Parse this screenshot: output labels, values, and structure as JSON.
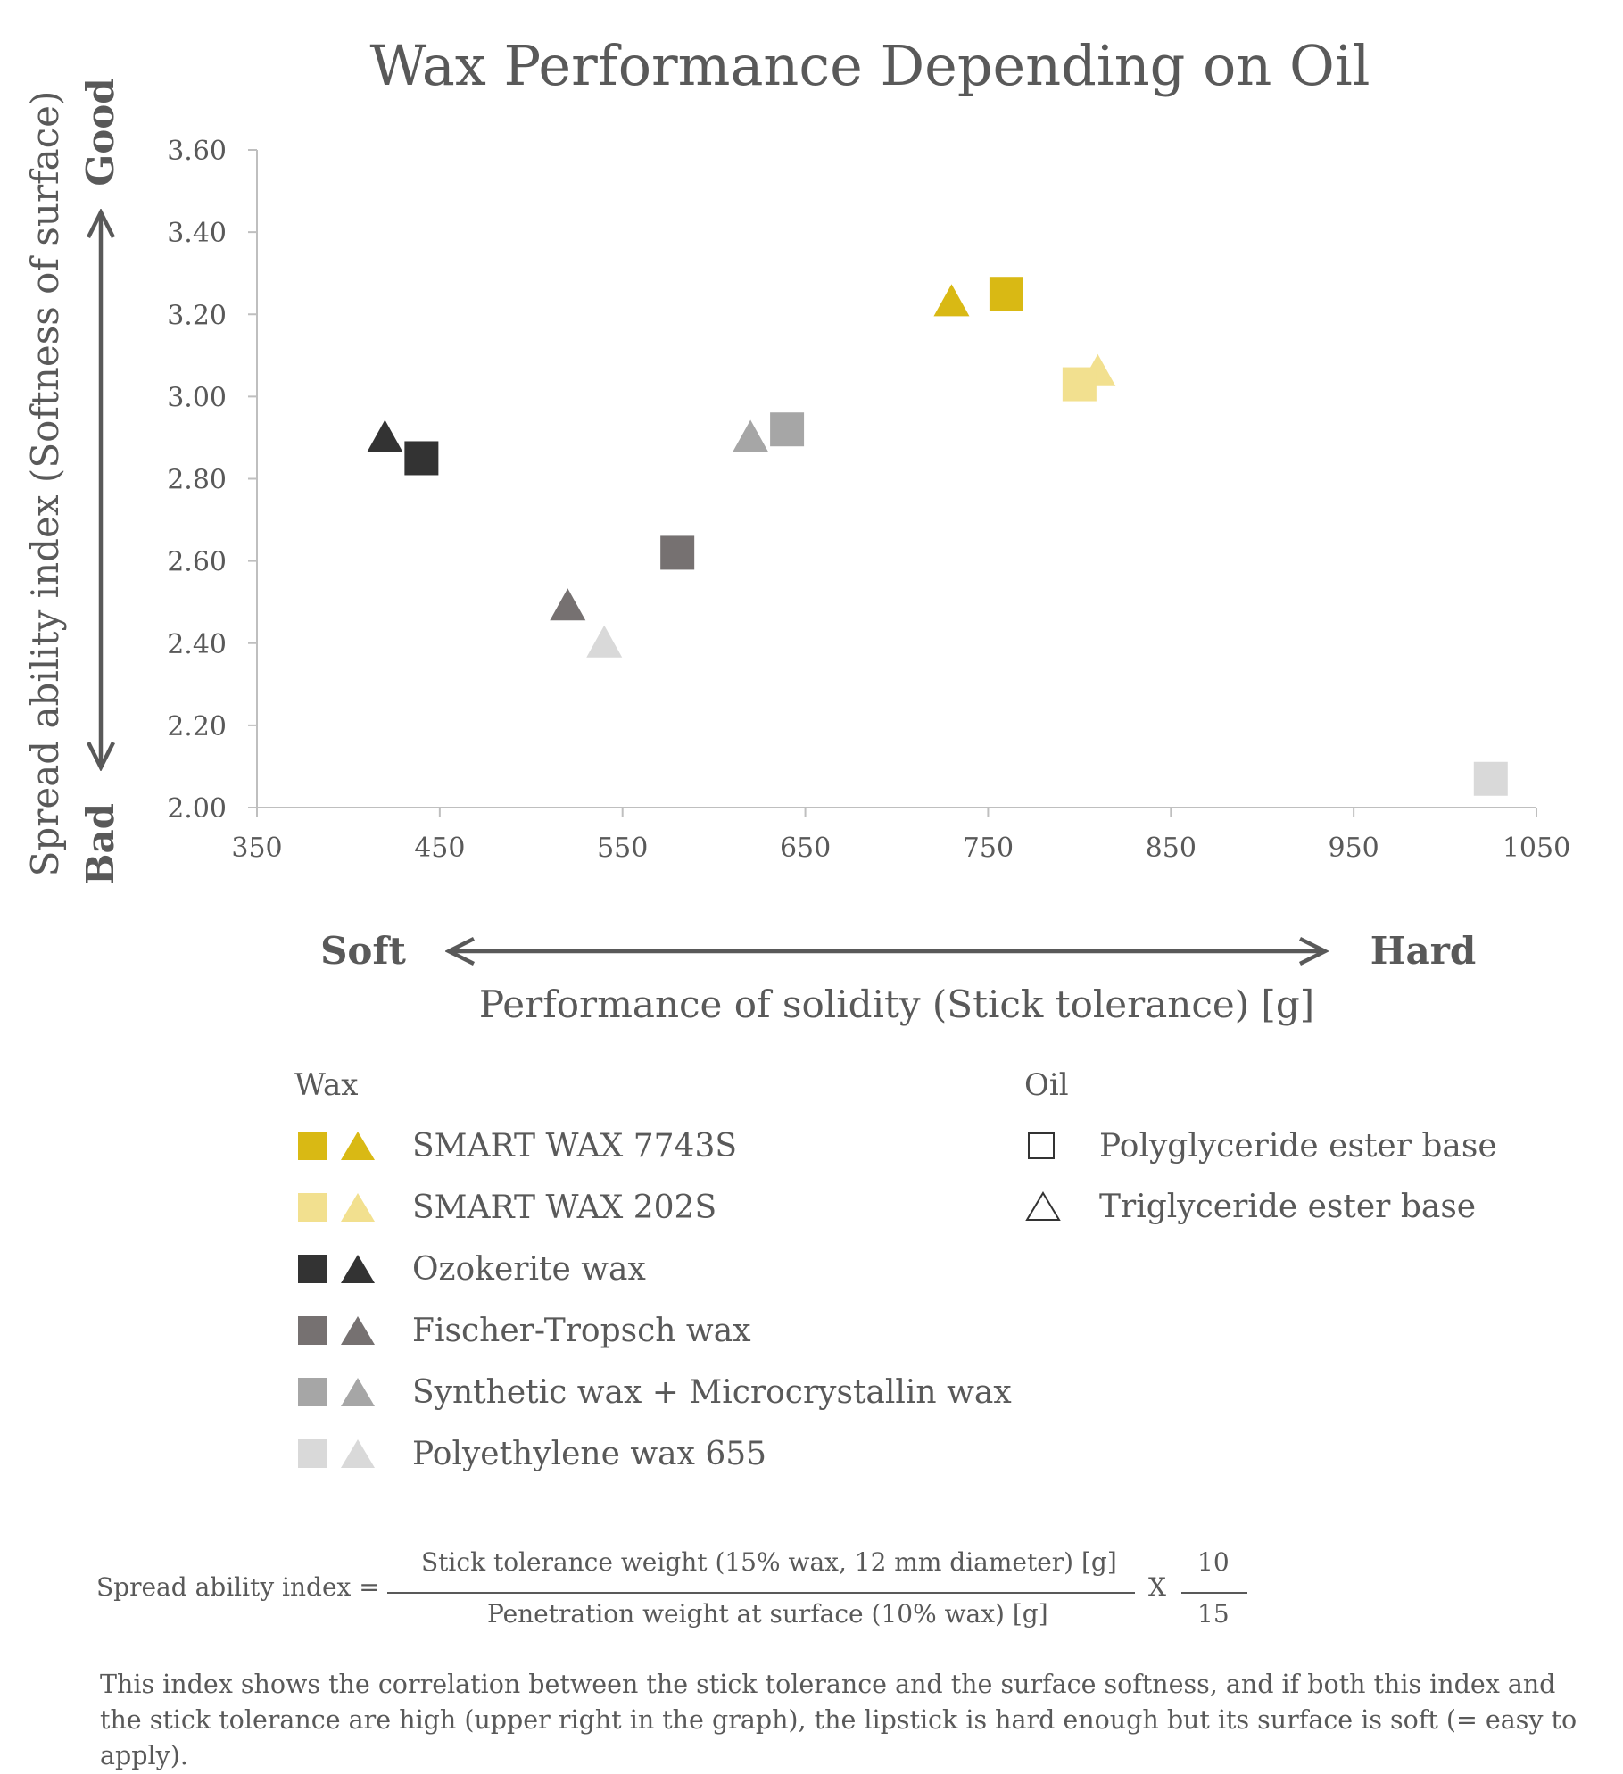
{
  "chart_data": {
    "type": "scatter",
    "title": "Wax Performance Depending on Oil",
    "xlabel": "Performance of solidity (Stick tolerance) [g]",
    "ylabel": "Spread ability index (Softness of  surface)",
    "xlim": [
      350,
      1050
    ],
    "ylim": [
      2.0,
      3.6
    ],
    "x_ticks": [
      "350",
      "450",
      "550",
      "650",
      "750",
      "850",
      "950",
      "1050"
    ],
    "y_ticks": [
      "2.00",
      "2.20",
      "2.40",
      "2.60",
      "2.80",
      "3.00",
      "3.20",
      "3.40",
      "3.60"
    ],
    "y_axis_top_label": "Good",
    "y_axis_bottom_label": "Bad",
    "x_axis_left_label": "Soft",
    "x_axis_right_label": "Hard",
    "grid": false,
    "series": [
      {
        "name": "SMART WAX 7743S",
        "color": "#D9B914",
        "faded": false,
        "polyglyceride": [
          760,
          3.25
        ],
        "triglyceride": [
          730,
          3.23
        ]
      },
      {
        "name": "SMART WAX 202S",
        "color": "#F2E08F",
        "faded": false,
        "polyglyceride": [
          800,
          3.03
        ],
        "triglyceride": [
          810,
          3.06
        ]
      },
      {
        "name": "Ozokerite wax",
        "color": "#333333",
        "faded": false,
        "polyglyceride": [
          440,
          2.85
        ],
        "triglyceride": [
          420,
          2.9
        ]
      },
      {
        "name": "Fischer-Tropsch wax",
        "color": "#767171",
        "faded": false,
        "polyglyceride": [
          580,
          2.62
        ],
        "triglyceride": [
          520,
          2.49
        ]
      },
      {
        "name": "Synthetic wax + Microcrystallin wax",
        "color": "#A6A6A6",
        "faded": false,
        "polyglyceride": [
          640,
          2.92
        ],
        "triglyceride": [
          620,
          2.9
        ]
      },
      {
        "name": "Polyethylene wax 655",
        "color": "#D9D9D9",
        "faded": false,
        "polyglyceride": [
          1025,
          2.07
        ],
        "triglyceride": [
          540,
          2.4
        ]
      }
    ]
  },
  "legend": {
    "wax_title": "Wax",
    "oil_title": "Oil",
    "oil_items": [
      {
        "label": "Polyglyceride ester base",
        "marker": "square"
      },
      {
        "label": "Triglyceride ester base",
        "marker": "triangle"
      }
    ]
  },
  "formula": {
    "lhs": "Spread ability index =",
    "numerator": "Stick tolerance weight (15% wax, 12 mm diameter) [g]",
    "denominator": "Penetration weight at surface (10% wax) [g]",
    "times": "X",
    "factor_numerator": "10",
    "factor_denominator": "15"
  },
  "note": "This index shows the correlation between the stick tolerance and the surface softness, and if both this index and the stick tolerance are high (upper right in the graph), the lipstick is hard enough but its surface is soft (= easy to apply)."
}
